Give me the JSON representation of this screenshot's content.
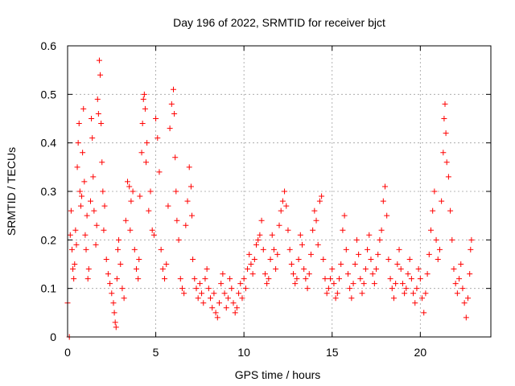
{
  "chart_data": {
    "type": "scatter",
    "title": "Day 196 of 2022, SRMTID for receiver bjct",
    "xlabel": "GPS time / hours",
    "ylabel": "SRMTID / TECUs",
    "xlim": [
      0,
      24
    ],
    "ylim": [
      0,
      0.6
    ],
    "x_ticks": [
      0,
      5,
      10,
      15,
      20
    ],
    "x_tick_labels": [
      "0",
      "5",
      "10",
      "15",
      "20"
    ],
    "y_ticks": [
      0,
      0.1,
      0.2,
      0.3,
      0.4,
      0.5,
      0.6
    ],
    "y_tick_labels": [
      "0",
      "0.1",
      "0.2",
      "0.3",
      "0.4",
      "0.5",
      "0.6"
    ],
    "grid": true,
    "marker": "plus",
    "color": "#ff0000",
    "series": [
      {
        "name": "SRMTID",
        "points": [
          [
            0.0,
            0.07
          ],
          [
            0.1,
            0.0
          ],
          [
            0.15,
            0.21
          ],
          [
            0.2,
            0.26
          ],
          [
            0.25,
            0.18
          ],
          [
            0.3,
            0.14
          ],
          [
            0.35,
            0.12
          ],
          [
            0.4,
            0.15
          ],
          [
            0.45,
            0.22
          ],
          [
            0.5,
            0.19
          ],
          [
            0.55,
            0.35
          ],
          [
            0.6,
            0.4
          ],
          [
            0.65,
            0.44
          ],
          [
            0.7,
            0.3
          ],
          [
            0.75,
            0.27
          ],
          [
            0.8,
            0.29
          ],
          [
            0.85,
            0.38
          ],
          [
            0.9,
            0.47
          ],
          [
            0.95,
            0.32
          ],
          [
            1.0,
            0.21
          ],
          [
            1.05,
            0.18
          ],
          [
            1.1,
            0.25
          ],
          [
            1.15,
            0.12
          ],
          [
            1.2,
            0.14
          ],
          [
            1.3,
            0.28
          ],
          [
            1.35,
            0.45
          ],
          [
            1.4,
            0.41
          ],
          [
            1.45,
            0.33
          ],
          [
            1.5,
            0.26
          ],
          [
            1.6,
            0.19
          ],
          [
            1.65,
            0.23
          ],
          [
            1.7,
            0.49
          ],
          [
            1.75,
            0.46
          ],
          [
            1.8,
            0.57
          ],
          [
            1.85,
            0.54
          ],
          [
            1.9,
            0.44
          ],
          [
            1.95,
            0.36
          ],
          [
            2.0,
            0.3
          ],
          [
            2.05,
            0.22
          ],
          [
            2.1,
            0.27
          ],
          [
            2.2,
            0.16
          ],
          [
            2.3,
            0.13
          ],
          [
            2.4,
            0.11
          ],
          [
            2.5,
            0.09
          ],
          [
            2.6,
            0.07
          ],
          [
            2.65,
            0.05
          ],
          [
            2.7,
            0.03
          ],
          [
            2.75,
            0.02
          ],
          [
            2.8,
            0.12
          ],
          [
            2.85,
            0.18
          ],
          [
            2.9,
            0.2
          ],
          [
            3.0,
            0.15
          ],
          [
            3.1,
            0.1
          ],
          [
            3.2,
            0.08
          ],
          [
            3.3,
            0.24
          ],
          [
            3.4,
            0.32
          ],
          [
            3.5,
            0.31
          ],
          [
            3.55,
            0.22
          ],
          [
            3.6,
            0.28
          ],
          [
            3.7,
            0.3
          ],
          [
            3.8,
            0.18
          ],
          [
            3.9,
            0.14
          ],
          [
            4.0,
            0.12
          ],
          [
            4.05,
            0.16
          ],
          [
            4.1,
            0.29
          ],
          [
            4.2,
            0.38
          ],
          [
            4.25,
            0.44
          ],
          [
            4.3,
            0.49
          ],
          [
            4.35,
            0.5
          ],
          [
            4.4,
            0.47
          ],
          [
            4.45,
            0.36
          ],
          [
            4.5,
            0.4
          ],
          [
            4.6,
            0.26
          ],
          [
            4.7,
            0.3
          ],
          [
            4.8,
            0.22
          ],
          [
            4.9,
            0.21
          ],
          [
            5.0,
            0.45
          ],
          [
            5.1,
            0.41
          ],
          [
            5.2,
            0.34
          ],
          [
            5.3,
            0.18
          ],
          [
            5.4,
            0.14
          ],
          [
            5.5,
            0.12
          ],
          [
            5.6,
            0.15
          ],
          [
            5.7,
            0.27
          ],
          [
            5.8,
            0.43
          ],
          [
            5.9,
            0.48
          ],
          [
            6.0,
            0.51
          ],
          [
            6.05,
            0.46
          ],
          [
            6.1,
            0.37
          ],
          [
            6.15,
            0.3
          ],
          [
            6.2,
            0.24
          ],
          [
            6.3,
            0.2
          ],
          [
            6.4,
            0.12
          ],
          [
            6.5,
            0.1
          ],
          [
            6.6,
            0.09
          ],
          [
            6.7,
            0.23
          ],
          [
            6.8,
            0.28
          ],
          [
            6.9,
            0.35
          ],
          [
            7.0,
            0.31
          ],
          [
            7.05,
            0.25
          ],
          [
            7.1,
            0.16
          ],
          [
            7.2,
            0.12
          ],
          [
            7.3,
            0.1
          ],
          [
            7.4,
            0.08
          ],
          [
            7.5,
            0.11
          ],
          [
            7.6,
            0.09
          ],
          [
            7.7,
            0.07
          ],
          [
            7.8,
            0.12
          ],
          [
            7.9,
            0.14
          ],
          [
            8.0,
            0.1
          ],
          [
            8.1,
            0.08
          ],
          [
            8.2,
            0.06
          ],
          [
            8.3,
            0.09
          ],
          [
            8.4,
            0.05
          ],
          [
            8.5,
            0.04
          ],
          [
            8.6,
            0.07
          ],
          [
            8.7,
            0.11
          ],
          [
            8.8,
            0.13
          ],
          [
            8.9,
            0.09
          ],
          [
            9.0,
            0.06
          ],
          [
            9.1,
            0.08
          ],
          [
            9.2,
            0.12
          ],
          [
            9.3,
            0.1
          ],
          [
            9.4,
            0.07
          ],
          [
            9.5,
            0.05
          ],
          [
            9.6,
            0.06
          ],
          [
            9.7,
            0.09
          ],
          [
            9.8,
            0.11
          ],
          [
            9.9,
            0.08
          ],
          [
            10.0,
            0.12
          ],
          [
            10.1,
            0.1
          ],
          [
            10.2,
            0.14
          ],
          [
            10.3,
            0.17
          ],
          [
            10.4,
            0.15
          ],
          [
            10.5,
            0.13
          ],
          [
            10.6,
            0.16
          ],
          [
            10.7,
            0.19
          ],
          [
            10.8,
            0.2
          ],
          [
            10.9,
            0.21
          ],
          [
            11.0,
            0.24
          ],
          [
            11.1,
            0.18
          ],
          [
            11.2,
            0.13
          ],
          [
            11.3,
            0.11
          ],
          [
            11.4,
            0.12
          ],
          [
            11.5,
            0.16
          ],
          [
            11.6,
            0.21
          ],
          [
            11.7,
            0.18
          ],
          [
            11.8,
            0.14
          ],
          [
            11.9,
            0.17
          ],
          [
            12.0,
            0.23
          ],
          [
            12.1,
            0.26
          ],
          [
            12.2,
            0.28
          ],
          [
            12.3,
            0.3
          ],
          [
            12.4,
            0.27
          ],
          [
            12.5,
            0.22
          ],
          [
            12.6,
            0.18
          ],
          [
            12.7,
            0.15
          ],
          [
            12.8,
            0.13
          ],
          [
            12.9,
            0.11
          ],
          [
            13.0,
            0.12
          ],
          [
            13.1,
            0.16
          ],
          [
            13.2,
            0.21
          ],
          [
            13.3,
            0.19
          ],
          [
            13.4,
            0.14
          ],
          [
            13.5,
            0.12
          ],
          [
            13.6,
            0.1
          ],
          [
            13.7,
            0.13
          ],
          [
            13.8,
            0.17
          ],
          [
            13.9,
            0.22
          ],
          [
            14.0,
            0.26
          ],
          [
            14.1,
            0.24
          ],
          [
            14.2,
            0.19
          ],
          [
            14.3,
            0.28
          ],
          [
            14.4,
            0.29
          ],
          [
            14.5,
            0.16
          ],
          [
            14.6,
            0.12
          ],
          [
            14.7,
            0.09
          ],
          [
            14.8,
            0.1
          ],
          [
            14.9,
            0.12
          ],
          [
            15.0,
            0.14
          ],
          [
            15.1,
            0.11
          ],
          [
            15.2,
            0.08
          ],
          [
            15.3,
            0.09
          ],
          [
            15.4,
            0.12
          ],
          [
            15.5,
            0.15
          ],
          [
            15.6,
            0.22
          ],
          [
            15.7,
            0.25
          ],
          [
            15.8,
            0.18
          ],
          [
            15.9,
            0.13
          ],
          [
            16.0,
            0.1
          ],
          [
            16.1,
            0.08
          ],
          [
            16.2,
            0.11
          ],
          [
            16.3,
            0.15
          ],
          [
            16.4,
            0.2
          ],
          [
            16.5,
            0.17
          ],
          [
            16.6,
            0.12
          ],
          [
            16.7,
            0.09
          ],
          [
            16.8,
            0.11
          ],
          [
            16.9,
            0.14
          ],
          [
            17.0,
            0.18
          ],
          [
            17.1,
            0.21
          ],
          [
            17.2,
            0.16
          ],
          [
            17.3,
            0.13
          ],
          [
            17.4,
            0.11
          ],
          [
            17.5,
            0.14
          ],
          [
            17.6,
            0.17
          ],
          [
            17.7,
            0.2
          ],
          [
            17.8,
            0.22
          ],
          [
            17.9,
            0.28
          ],
          [
            18.0,
            0.31
          ],
          [
            18.1,
            0.25
          ],
          [
            18.2,
            0.16
          ],
          [
            18.3,
            0.12
          ],
          [
            18.4,
            0.1
          ],
          [
            18.5,
            0.08
          ],
          [
            18.6,
            0.11
          ],
          [
            18.7,
            0.15
          ],
          [
            18.8,
            0.18
          ],
          [
            18.9,
            0.14
          ],
          [
            19.0,
            0.11
          ],
          [
            19.1,
            0.09
          ],
          [
            19.2,
            0.1
          ],
          [
            19.3,
            0.13
          ],
          [
            19.4,
            0.16
          ],
          [
            19.5,
            0.12
          ],
          [
            19.6,
            0.09
          ],
          [
            19.7,
            0.07
          ],
          [
            19.8,
            0.1
          ],
          [
            19.9,
            0.14
          ],
          [
            20.0,
            0.12
          ],
          [
            20.1,
            0.08
          ],
          [
            20.2,
            0.05
          ],
          [
            20.3,
            0.09
          ],
          [
            20.4,
            0.13
          ],
          [
            20.5,
            0.17
          ],
          [
            20.6,
            0.22
          ],
          [
            20.7,
            0.26
          ],
          [
            20.8,
            0.3
          ],
          [
            20.9,
            0.2
          ],
          [
            21.0,
            0.16
          ],
          [
            21.1,
            0.18
          ],
          [
            21.2,
            0.28
          ],
          [
            21.3,
            0.38
          ],
          [
            21.35,
            0.45
          ],
          [
            21.4,
            0.48
          ],
          [
            21.45,
            0.42
          ],
          [
            21.5,
            0.36
          ],
          [
            21.6,
            0.33
          ],
          [
            21.7,
            0.26
          ],
          [
            21.8,
            0.2
          ],
          [
            21.9,
            0.14
          ],
          [
            22.0,
            0.11
          ],
          [
            22.1,
            0.09
          ],
          [
            22.2,
            0.12
          ],
          [
            22.3,
            0.15
          ],
          [
            22.4,
            0.1
          ],
          [
            22.5,
            0.07
          ],
          [
            22.6,
            0.04
          ],
          [
            22.7,
            0.08
          ],
          [
            22.8,
            0.13
          ],
          [
            22.85,
            0.18
          ],
          [
            22.9,
            0.2
          ]
        ]
      }
    ]
  }
}
